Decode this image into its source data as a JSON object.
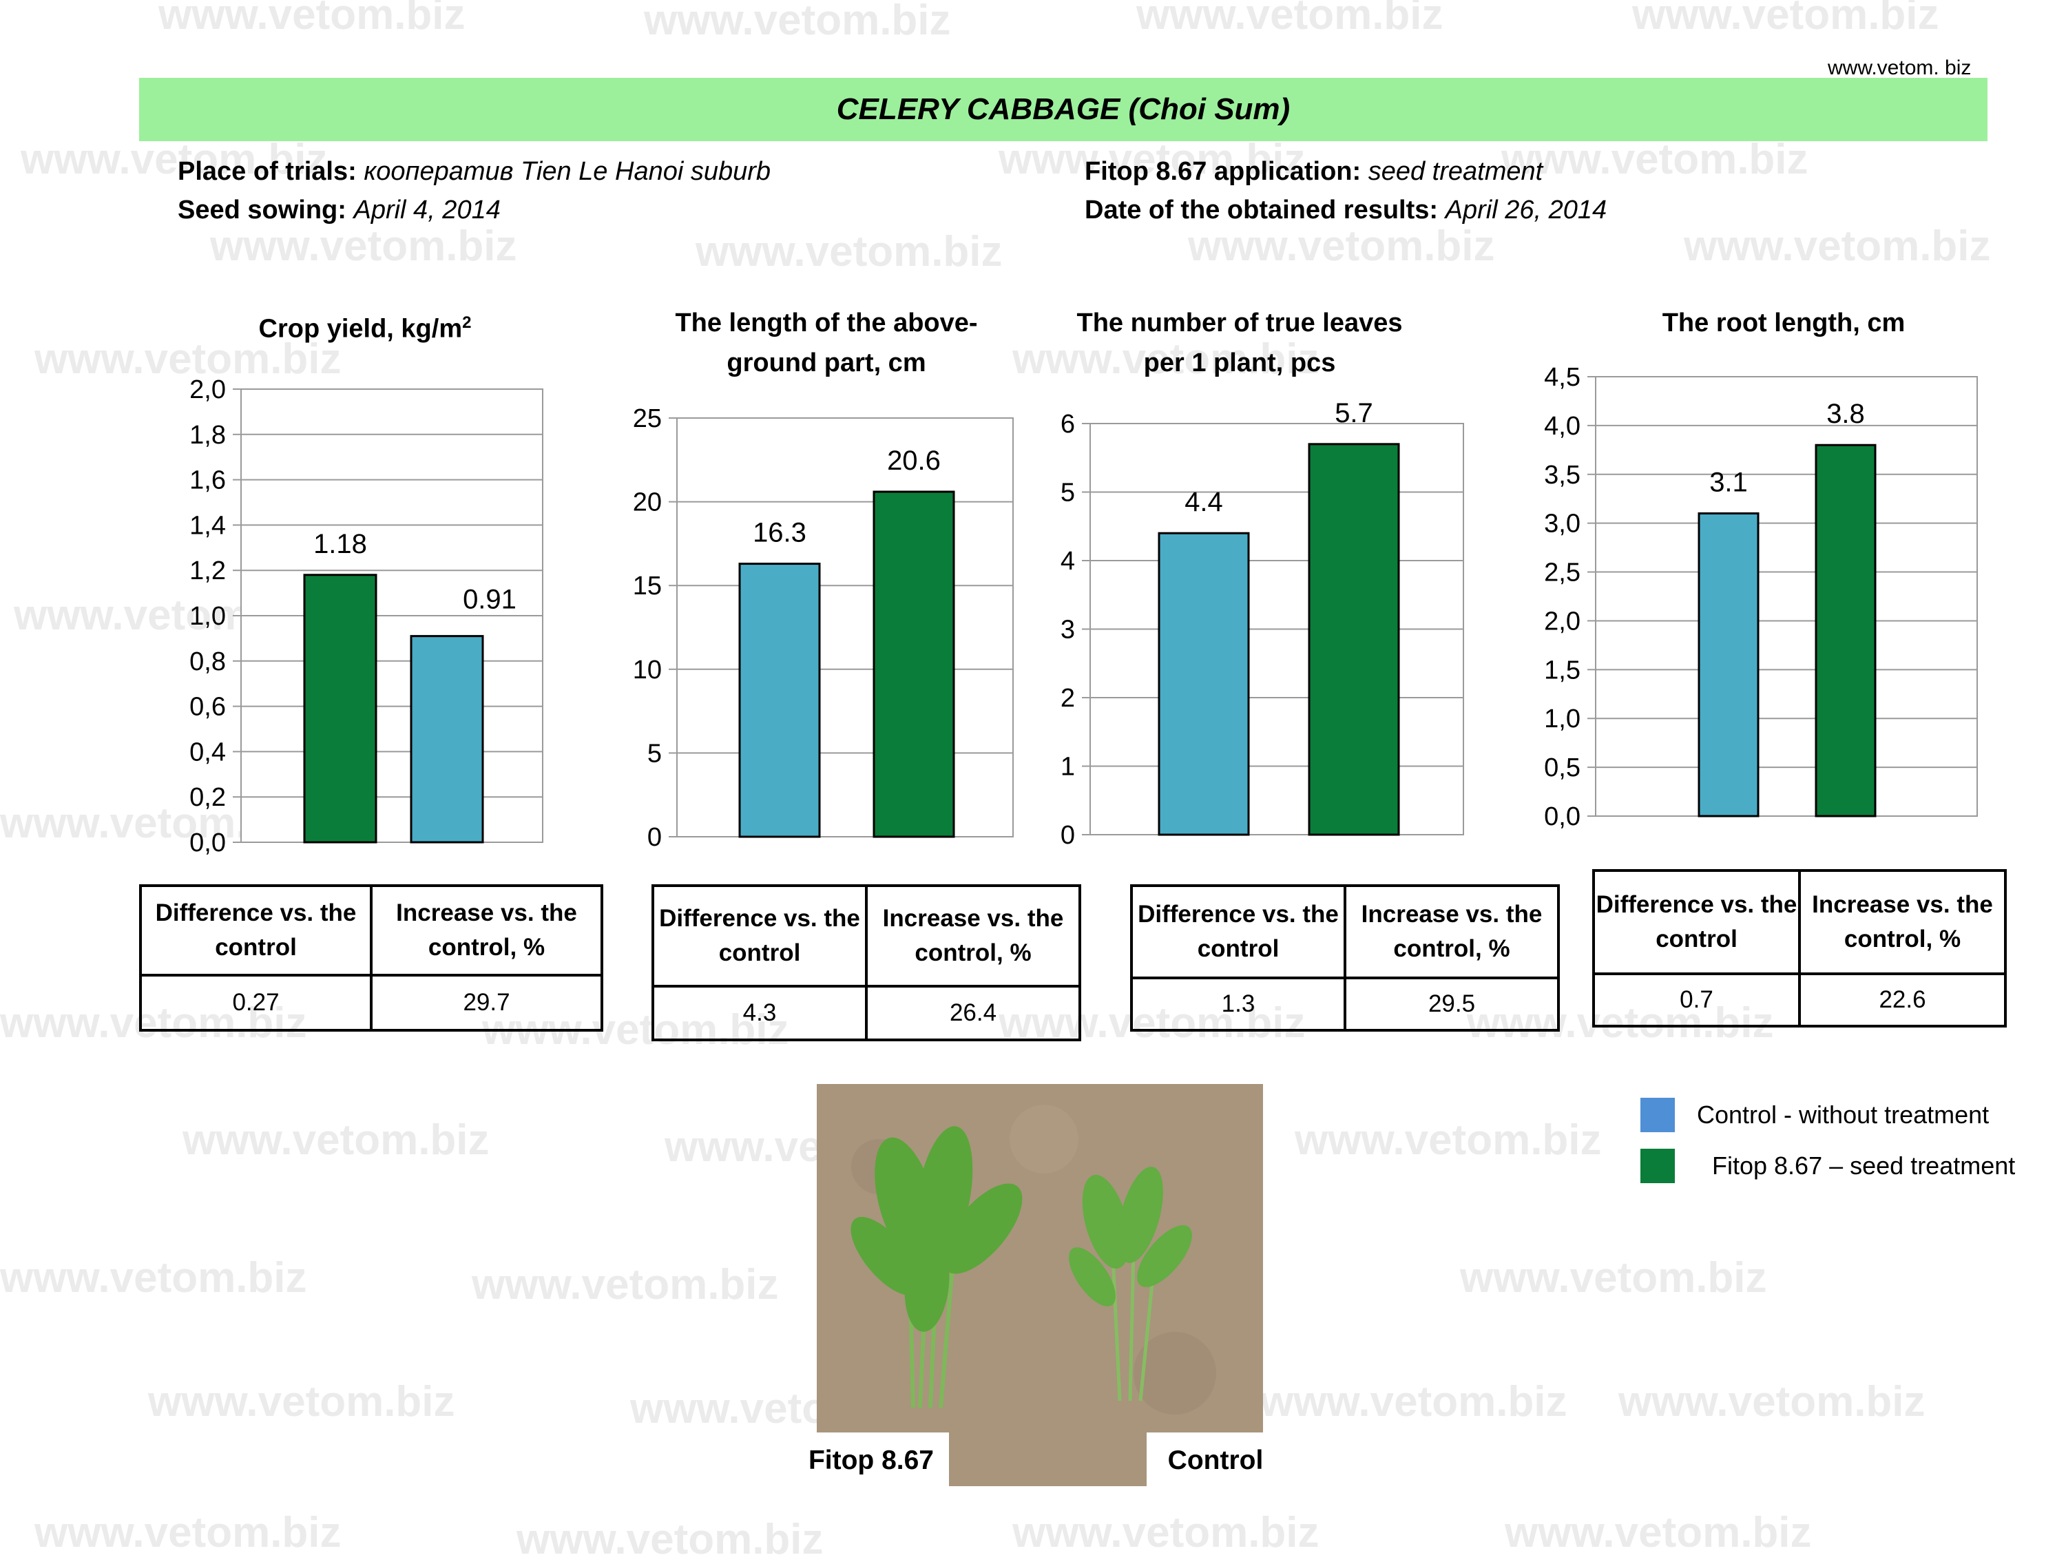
{
  "watermark": "www.vetom.biz",
  "site_label": "www.vetom. biz",
  "title": "CELERY CABBAGE (Choi Sum)",
  "info": {
    "place_label": "Place of trials:",
    "place_value": "кооператив Tien Le Hanoi suburb",
    "sowing_label": "Seed sowing:",
    "sowing_value": "April  4, 2014",
    "application_label": "Fitop 8.67 application:",
    "application_value": "seed treatment",
    "results_label": "Date of  the obtained results:",
    "results_value": "April 26, 2014"
  },
  "colors": {
    "control": "#4bacc6",
    "fitop": "#0a7d3a",
    "legend_control": "#4f8fd6",
    "banner": "#9cf09c"
  },
  "chart_data": [
    {
      "type": "bar",
      "title_line1": "Crop yield, kg/m",
      "title_sup": "2",
      "title_line2": "",
      "categories": [
        "Fitop 8.67",
        "Control"
      ],
      "values": [
        1.18,
        0.91
      ],
      "value_labels": [
        "1.18",
        "0.91"
      ],
      "colors": [
        "#0a7d3a",
        "#4bacc6"
      ],
      "ylim": [
        0,
        2.0
      ],
      "yticks": [
        0,
        0.2,
        0.4,
        0.6,
        0.8,
        1.0,
        1.2,
        1.4,
        1.6,
        1.8,
        2.0
      ],
      "ytick_labels": [
        "0,0",
        "0,2",
        "0,4",
        "0,6",
        "0,8",
        "1,0",
        "1,2",
        "1,4",
        "1,6",
        "1,8",
        "2,0"
      ],
      "grid": true
    },
    {
      "type": "bar",
      "title_line1": "The length of the above-",
      "title_sup": "",
      "title_line2": "ground part, cm",
      "categories": [
        "Control",
        "Fitop 8.67"
      ],
      "values": [
        16.3,
        20.6
      ],
      "value_labels": [
        "16.3",
        "20.6"
      ],
      "colors": [
        "#4bacc6",
        "#0a7d3a"
      ],
      "ylim": [
        0,
        25
      ],
      "yticks": [
        0,
        5,
        10,
        15,
        20,
        25
      ],
      "ytick_labels": [
        "0",
        "5",
        "10",
        "15",
        "20",
        "25"
      ],
      "grid": true
    },
    {
      "type": "bar",
      "title_line1": "The number of true leaves",
      "title_sup": "",
      "title_line2": "per 1 plant, pcs",
      "categories": [
        "Control",
        "Fitop 8.67"
      ],
      "values": [
        4.4,
        5.7
      ],
      "value_labels": [
        "4.4",
        "5.7"
      ],
      "colors": [
        "#4bacc6",
        "#0a7d3a"
      ],
      "ylim": [
        0,
        6
      ],
      "yticks": [
        0,
        1,
        2,
        3,
        4,
        5,
        6
      ],
      "ytick_labels": [
        "0",
        "1",
        "2",
        "3",
        "4",
        "5",
        "6"
      ],
      "grid": true
    },
    {
      "type": "bar",
      "title_line1": "The root length, cm",
      "title_sup": "",
      "title_line2": "",
      "categories": [
        "Control",
        "Fitop 8.67"
      ],
      "values": [
        3.1,
        3.8
      ],
      "value_labels": [
        "3.1",
        "3.8"
      ],
      "colors": [
        "#4bacc6",
        "#0a7d3a"
      ],
      "ylim": [
        0,
        4.5
      ],
      "yticks": [
        0,
        0.5,
        1.0,
        1.5,
        2.0,
        2.5,
        3.0,
        3.5,
        4.0,
        4.5
      ],
      "ytick_labels": [
        "0,0",
        "0,5",
        "1,0",
        "1,5",
        "2,0",
        "2,5",
        "3,0",
        "3,5",
        "4,0",
        "4,5"
      ],
      "grid": true
    }
  ],
  "tables": [
    {
      "h1": "Difference vs. the control",
      "h2": "Increase vs. the control, %",
      "v1": "0.27",
      "v2": "29.7"
    },
    {
      "h1": "Difference vs. the control",
      "h2": "Increase vs. the control, %",
      "v1": "4.3",
      "v2": "26.4"
    },
    {
      "h1": "Difference vs. the control",
      "h2": "Increase vs. the control, %",
      "v1": "1.3",
      "v2": "29.5"
    },
    {
      "h1": "Difference vs. the control",
      "h2": "Increase vs. the control, %",
      "v1": "0.7",
      "v2": "22.6"
    }
  ],
  "photo": {
    "label_left": "Fitop 8.67",
    "label_right": "Control"
  },
  "legend": {
    "control": "Control - without treatment",
    "fitop": "Fitop 8.67 – seed treatment"
  }
}
